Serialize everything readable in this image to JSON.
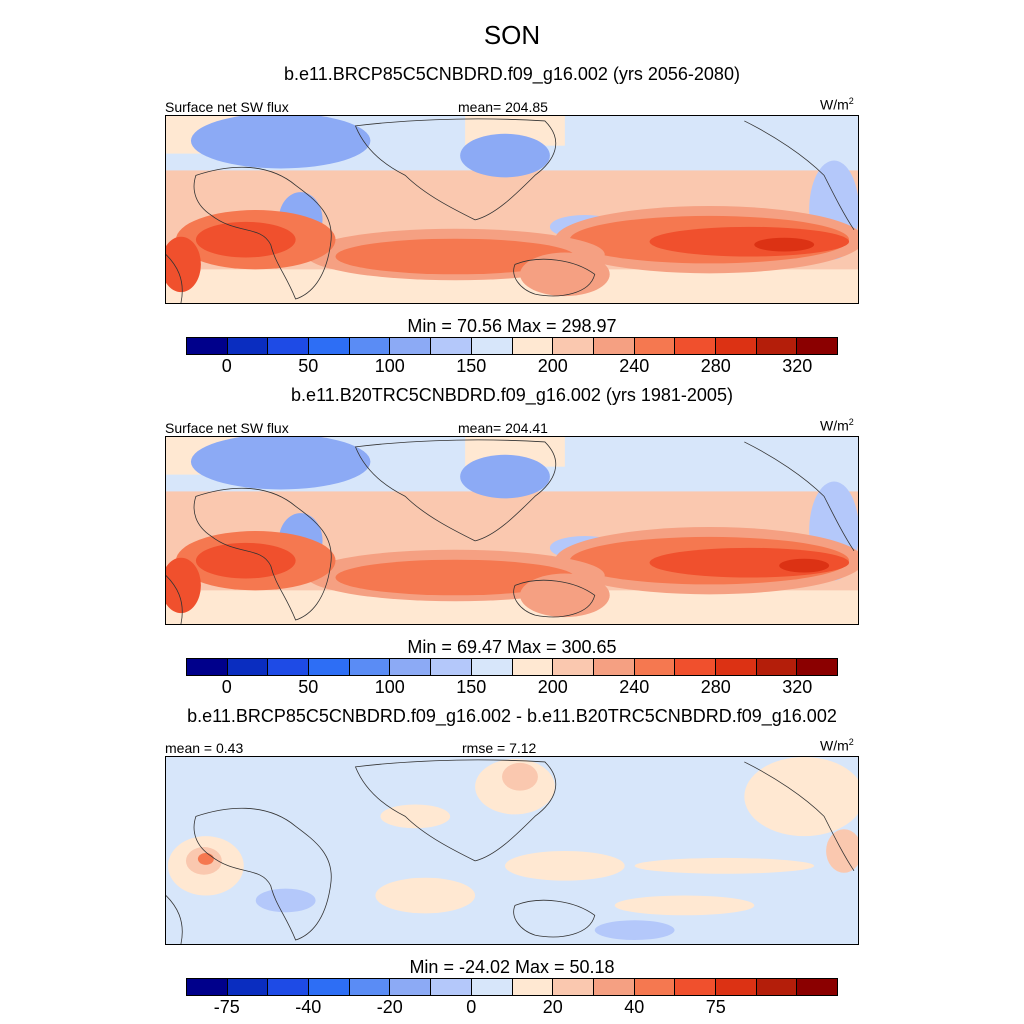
{
  "title": "SON",
  "colors": [
    "#00008b",
    "#0a2dc0",
    "#1e4be6",
    "#2d6ef5",
    "#5a8cf5",
    "#8caaf5",
    "#b4c8fa",
    "#d7e6fa",
    "#ffe8d2",
    "#fac8af",
    "#f5a082",
    "#f57850",
    "#f0502d",
    "#dc3214",
    "#b41e0a",
    "#8b0000"
  ],
  "panels": [
    {
      "subtitle": "b.e11.BRCP85C5CNBDRD.f09_g16.002 (yrs 2056-2080)",
      "left_label": "Surface net SW flux",
      "center_label": "mean= 204.85",
      "unit_base": "W/m",
      "unit_sup": "2",
      "minmax": "Min =  70.56 Max = 298.97",
      "ticks": [
        "0",
        "50",
        "100",
        "150",
        "200",
        "240",
        "280",
        "320"
      ]
    },
    {
      "subtitle": "b.e11.B20TRC5CNBDRD.f09_g16.002 (yrs 1981-2005)",
      "left_label": "Surface net SW flux",
      "center_label": "mean= 204.41",
      "unit_base": "W/m",
      "unit_sup": "2",
      "minmax": "Min =  69.47 Max = 300.65",
      "ticks": [
        "0",
        "50",
        "100",
        "150",
        "200",
        "240",
        "280",
        "320"
      ]
    },
    {
      "subtitle": "b.e11.BRCP85C5CNBDRD.f09_g16.002 - b.e11.B20TRC5CNBDRD.f09_g16.002",
      "left_label": "mean =   0.43",
      "center_label": "rmse =   7.12",
      "unit_base": "W/m",
      "unit_sup": "2",
      "minmax": "Min = -24.02 Max =  50.18",
      "ticks": [
        "-75",
        "-40",
        "-20",
        "0",
        "20",
        "40",
        "75"
      ]
    }
  ]
}
